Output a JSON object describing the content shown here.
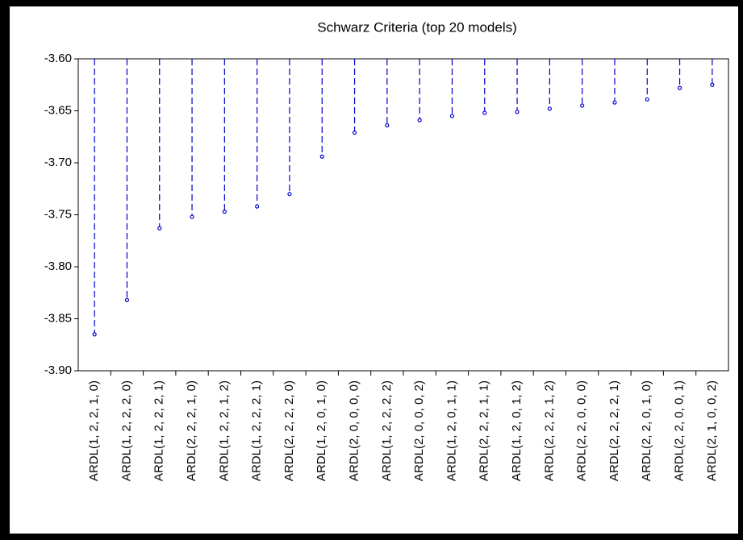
{
  "chart_data": {
    "type": "lollipop",
    "title": "Schwarz Criteria (top 20 models)",
    "categories": [
      "ARDL(1, 2, 2, 1, 0)",
      "ARDL(1, 2, 2, 2, 0)",
      "ARDL(1, 2, 2, 2, 1)",
      "ARDL(2, 2, 2, 1, 0)",
      "ARDL(1, 2, 2, 1, 2)",
      "ARDL(1, 2, 2, 2, 1)",
      "ARDL(2, 2, 2, 2, 0)",
      "ARDL(1, 2, 0, 1, 0)",
      "ARDL(2, 0, 0, 0, 0)",
      "ARDL(1, 2, 2, 2, 2)",
      "ARDL(2, 0, 0, 0, 2)",
      "ARDL(1, 2, 0, 1, 1)",
      "ARDL(2, 2, 2, 1, 1)",
      "ARDL(1, 2, 0, 1, 2)",
      "ARDL(2, 2, 2, 1, 2)",
      "ARDL(2, 2, 0, 0, 0)",
      "ARDL(2, 2, 2, 2, 1)",
      "ARDL(2, 2, 0, 1, 0)",
      "ARDL(2, 2, 0, 0, 1)",
      "ARDL(2, 1, 0, 0, 2)"
    ],
    "values": [
      -3.865,
      -3.832,
      -3.763,
      -3.752,
      -3.747,
      -3.742,
      -3.73,
      -3.694,
      -3.671,
      -3.664,
      -3.659,
      -3.655,
      -3.652,
      -3.651,
      -3.648,
      -3.645,
      -3.642,
      -3.639,
      -3.628,
      -3.625
    ],
    "color": "#0000cc",
    "ylim": [
      -3.9,
      -3.6
    ],
    "yticks": [
      {
        "value": -3.9,
        "label": "-3.90"
      },
      {
        "value": -3.85,
        "label": "-3.85"
      },
      {
        "value": -3.8,
        "label": "-3.80"
      },
      {
        "value": -3.75,
        "label": "-3.75"
      },
      {
        "value": -3.7,
        "label": "-3.70"
      },
      {
        "value": -3.65,
        "label": "-3.65"
      },
      {
        "value": -3.6,
        "label": "-3.60"
      }
    ],
    "grid": false
  }
}
